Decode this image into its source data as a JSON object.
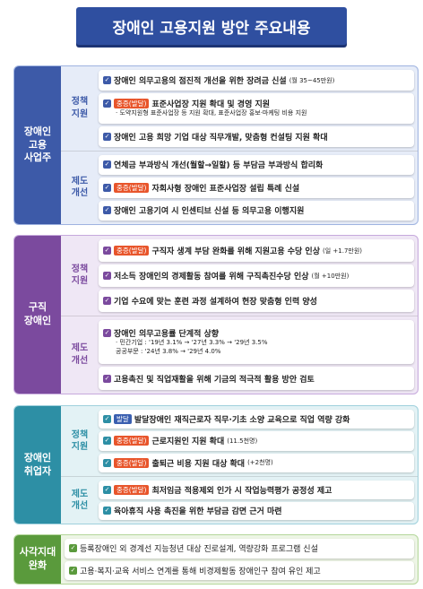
{
  "title": "장애인 고용지원 방안 주요내용",
  "sections": [
    {
      "label": "장애인\n고용\n사업주",
      "groups": [
        {
          "label": "정책\n지원",
          "items": [
            {
              "text": "장애인 의무고용의 점진적 개선을 위한 장려금 신설",
              "small": "(월 35~45만원)"
            },
            {
              "tag": "중증(발달)",
              "text": "표준사업장 지원 확대 및 경영 지원",
              "sub": [
                "· 도약지원형 표준사업장 등 지원 확대, 표준사업장 홍보·마케팅 비용 지원"
              ]
            },
            {
              "text": "장애인 고용 희망 기업 대상 직무개발, 맞춤형 컨설팅 지원 확대"
            }
          ]
        },
        {
          "label": "제도\n개선",
          "items": [
            {
              "text": "연체금 부과방식 개선(월할→일할) 등 부담금 부과방식 합리화"
            },
            {
              "tag": "중증(발달)",
              "text": "자회사형 장애인 표준사업장 설립 특례 신설"
            },
            {
              "text": "장애인 고용기여 시 인센티브 신설 등 의무고용 이행지원"
            }
          ]
        }
      ]
    },
    {
      "label": "구직\n장애인",
      "groups": [
        {
          "label": "정책\n지원",
          "items": [
            {
              "tag": "중증(발달)",
              "text": "구직자 생계 부담 완화를 위해 지원고용 수당 인상",
              "small": "(일 +1.7만원)"
            },
            {
              "text": "저소득 장애인의 경제활동 참여를 위해 구직촉진수당 인상",
              "small": "(월 +10만원)"
            },
            {
              "text": "기업 수요에 맞는 훈련 과정 설계하여 현장 맞춤형 인력 양성"
            }
          ]
        },
        {
          "label": "제도\n개선",
          "items": [
            {
              "text": "장애인 의무고용률 단계적 상향",
              "sub": [
                "· 민간기업 : '19년 3.1% → '27년 3.3% → '29년 3.5%",
                "공공부문 : '24년 3.8% → '29년 4.0%"
              ]
            },
            {
              "text": "고용촉진 및 직업재활을 위해 기금의 적극적 활용 방안 검토"
            }
          ]
        }
      ]
    },
    {
      "label": "장애인\n취업자",
      "groups": [
        {
          "label": "정책\n지원",
          "items": [
            {
              "tag": "발달",
              "text": "발달장애인 재직근로자 직무·기초 소양 교육으로 직업 역량 강화"
            },
            {
              "tag": "중증(발달)",
              "text": "근로지원인 지원 확대",
              "small": "(11.5천명)"
            },
            {
              "tag": "중증(발달)",
              "text": "출퇴근 비용 지원 대상 확대",
              "small": "(+2천명)"
            }
          ]
        },
        {
          "label": "제도\n개선",
          "items": [
            {
              "tag": "중증(발달)",
              "text": "최저임금 적용제외 인가 시 작업능력평가 공정성 제고"
            },
            {
              "text": "육아휴직 사용 촉진을 위한 부담금 감면 근거 마련"
            }
          ]
        }
      ]
    },
    {
      "label": "사각지대\n완화",
      "groups": [
        {
          "items": [
            {
              "text": "등록장애인 외 경계선 지능청년 대상 진로설계, 역량강화 프로그램 신설"
            },
            {
              "text": "고용·복지·교육 서비스 연계를 통해 비경제활동 장애인구 참여 유인 제고"
            }
          ]
        }
      ]
    }
  ]
}
